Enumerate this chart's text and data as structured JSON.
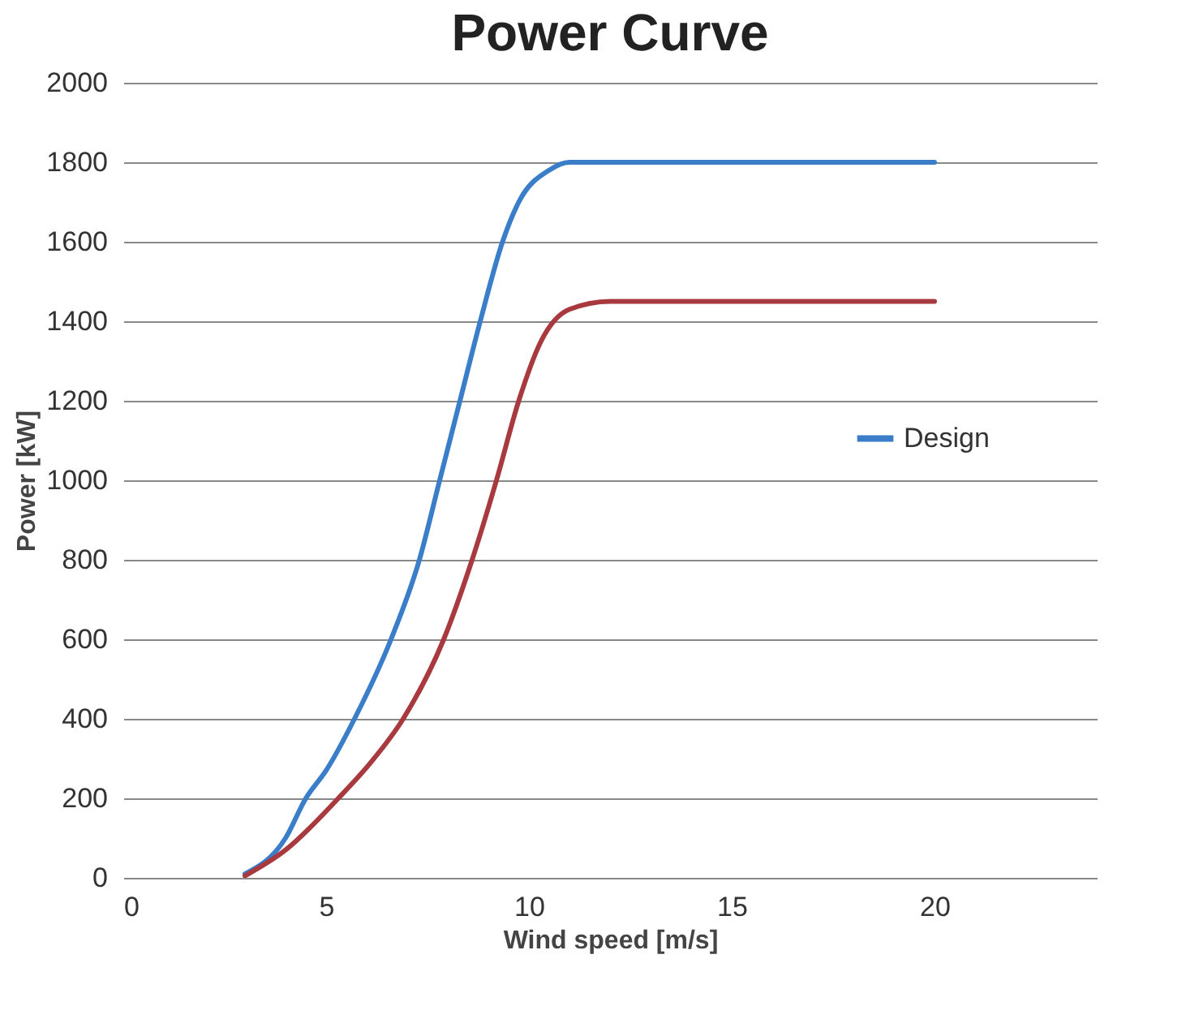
{
  "chart_data": {
    "type": "line",
    "title": "Power Curve",
    "xlabel": "Wind speed [m/s]",
    "ylabel": "Power [kW]",
    "xlim": [
      0,
      24
    ],
    "xticks": [
      0,
      5,
      10,
      15,
      20
    ],
    "ylim": [
      0,
      2000
    ],
    "yticks": [
      0,
      200,
      400,
      600,
      800,
      1000,
      1200,
      1400,
      1600,
      1800,
      2000
    ],
    "grid": "y",
    "legend": "right",
    "marker": "none",
    "line_style": "solid",
    "series": [
      {
        "name": "Design",
        "color": "#3a7dc9",
        "x": [
          3,
          4,
          4.5,
          5,
          5.7,
          6.6,
          7.3,
          7.8,
          8.3,
          8.8,
          9.35,
          9.75,
          10.5,
          11,
          15,
          20
        ],
        "values": [
          10,
          100,
          200,
          270,
          400,
          600,
          800,
          1000,
          1200,
          1400,
          1600,
          1700,
          1780,
          1800,
          1800,
          1800
        ]
      },
      {
        "color": "#a83a3f",
        "x": [
          3,
          4,
          5.3,
          6.1,
          6.9,
          7.9,
          8.6,
          9.2,
          9.75,
          10.3,
          11,
          12,
          15,
          20
        ],
        "values": [
          5,
          70,
          200,
          290,
          400,
          600,
          800,
          1000,
          1200,
          1350,
          1430,
          1450,
          1450,
          1450
        ]
      }
    ]
  }
}
